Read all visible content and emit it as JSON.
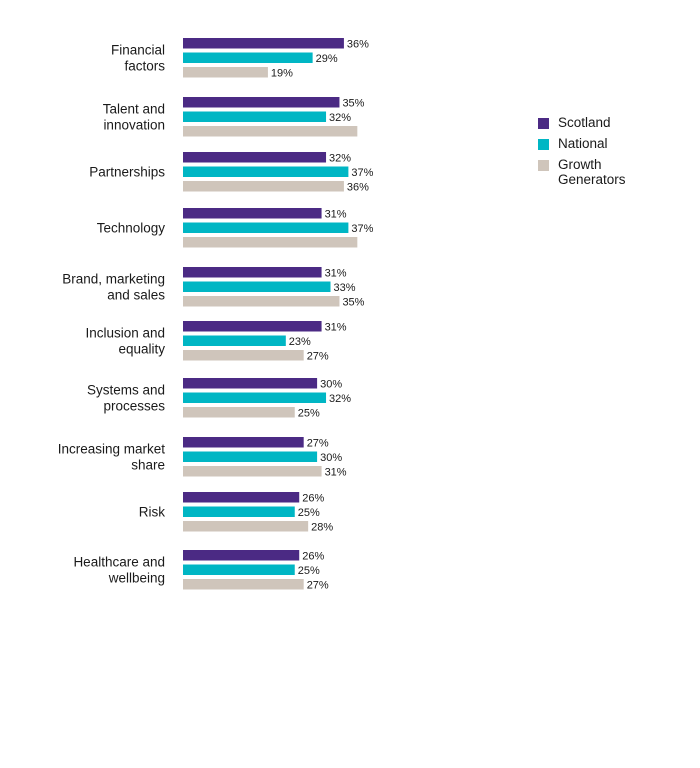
{
  "chart_data": {
    "type": "bar",
    "orientation": "horizontal",
    "categories": [
      [
        "Financial",
        "factors"
      ],
      [
        "Talent and",
        "innovation"
      ],
      [
        "Partnerships"
      ],
      [
        "Technology"
      ],
      [
        "Brand, marketing",
        "and sales"
      ],
      [
        "Inclusion and",
        "equality"
      ],
      [
        "Systems and",
        "processes"
      ],
      [
        "Increasing market",
        "share"
      ],
      [
        "Risk"
      ],
      [
        "Healthcare and",
        "wellbeing"
      ]
    ],
    "series": [
      {
        "name": "Scotland",
        "color": "#4b2a84",
        "values": [
          36,
          35,
          32,
          31,
          31,
          31,
          30,
          27,
          26,
          26
        ],
        "labels": [
          "36%",
          "35%",
          "32%",
          "31%",
          "31%",
          "31%",
          "30%",
          "27%",
          "26%",
          "26%"
        ]
      },
      {
        "name": "National",
        "color": "#00b6c4",
        "values": [
          29,
          32,
          37,
          37,
          33,
          23,
          32,
          30,
          25,
          25
        ],
        "labels": [
          "29%",
          "32%",
          "37%",
          "37%",
          "33%",
          "23%",
          "32%",
          "30%",
          "25%",
          "25%"
        ]
      },
      {
        "name": "Growth Generators",
        "color": "#cfc5bb",
        "values": [
          19,
          39,
          36,
          39,
          35,
          27,
          25,
          31,
          28,
          27
        ],
        "labels": [
          "19%",
          "",
          "36%",
          "",
          "35%",
          "27%",
          "25%",
          "31%",
          "28%",
          "27%"
        ]
      }
    ],
    "legend": [
      "Scotland",
      "National",
      "Growth Generators"
    ],
    "legend_position": "right",
    "grid": false
  }
}
